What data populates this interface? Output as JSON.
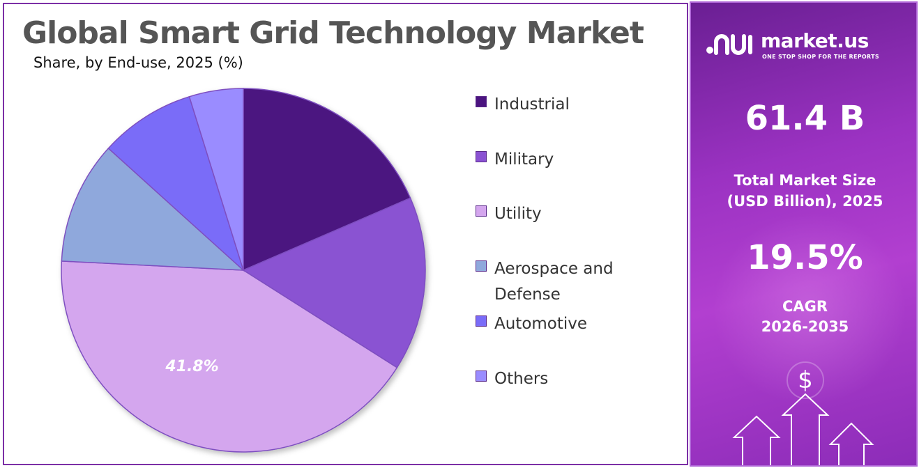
{
  "chart_data": {
    "type": "pie",
    "title": "Global Smart Grid Technology Market",
    "subtitle": "Share, by End-use, 2025 (%)",
    "categories": [
      "Industrial",
      "Military",
      "Utility",
      "Aerospace and Defense",
      "Automotive",
      "Others"
    ],
    "values": [
      18.5,
      15.5,
      41.8,
      10.9,
      8.5,
      4.8
    ],
    "colors": [
      "#4b1480",
      "#8a52d2",
      "#d4a6ee",
      "#8fa8dc",
      "#7a6cf8",
      "#9a8cff"
    ],
    "data_labels": [
      {
        "category": "Utility",
        "text": "41.8%"
      }
    ],
    "legend_position": "right"
  },
  "sidebar": {
    "brand_name": "market.us",
    "brand_tagline": "ONE STOP SHOP FOR THE REPORTS",
    "market_size_value": "61.4 B",
    "market_size_label_line1": "Total Market Size",
    "market_size_label_line2": "(USD Billion), 2025",
    "cagr_value": "19.5%",
    "cagr_label_line1": "CAGR",
    "cagr_label_line2": "2026-2035",
    "deco_symbol": "$"
  }
}
